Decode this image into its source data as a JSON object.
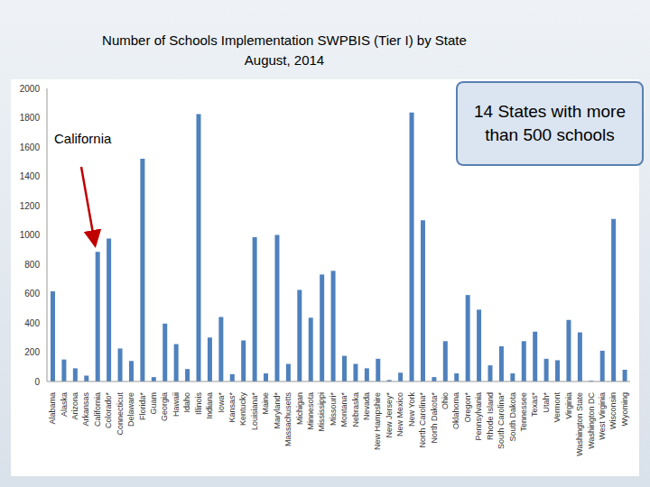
{
  "chart_data": {
    "type": "bar",
    "title": "Number of Schools Implementation SWPBIS (Tier I) by State",
    "subtitle": "August, 2014",
    "categories": [
      "Alabama",
      "Alaska",
      "Arizona",
      "Arkansas",
      "California",
      "Colorado*",
      "Connecticut",
      "Delaware",
      "Florida*",
      "Guam",
      "Georgia",
      "Hawaii",
      "Idaho",
      "Illinois",
      "Indiana",
      "Iowa*",
      "Kansas*",
      "Kentucky",
      "Louisiana*",
      "Maine",
      "Maryland*",
      "Massachusetts",
      "Michigan",
      "Minnesota",
      "Mississippi",
      "Missouri*",
      "Montana*",
      "Nebraska",
      "Nevada",
      "New Hampshire",
      "New Jersey*",
      "New Mexico",
      "New York",
      "North Carolina*",
      "North Dakota*",
      "Ohio",
      "Oklahoma",
      "Oregon*",
      "Pennsylvania",
      "Rhode Island",
      "South Carolina*",
      "South Dakota",
      "Tennessee",
      "Texas*",
      "Utah*",
      "Vermont",
      "Virginia",
      "Washington State",
      "Washington DC",
      "West Virginia",
      "Wisconsin",
      "Wyoming"
    ],
    "values": [
      615,
      150,
      90,
      40,
      885,
      975,
      225,
      140,
      1520,
      30,
      395,
      255,
      85,
      1825,
      300,
      440,
      50,
      280,
      985,
      55,
      1000,
      120,
      625,
      435,
      730,
      755,
      175,
      120,
      90,
      155,
      10,
      60,
      1835,
      1100,
      30,
      275,
      55,
      590,
      490,
      110,
      240,
      55,
      275,
      340,
      155,
      145,
      420,
      335,
      5,
      210,
      1110,
      80
    ],
    "color": "#4f81bd",
    "ylim": [
      0,
      2000
    ],
    "yticks": [
      0,
      200,
      400,
      600,
      800,
      1000,
      1200,
      1400,
      1600,
      1800,
      2000
    ],
    "grid": false,
    "annotations": [
      {
        "text": "California"
      },
      {
        "text": "14 States with more than 500 schools"
      }
    ]
  }
}
